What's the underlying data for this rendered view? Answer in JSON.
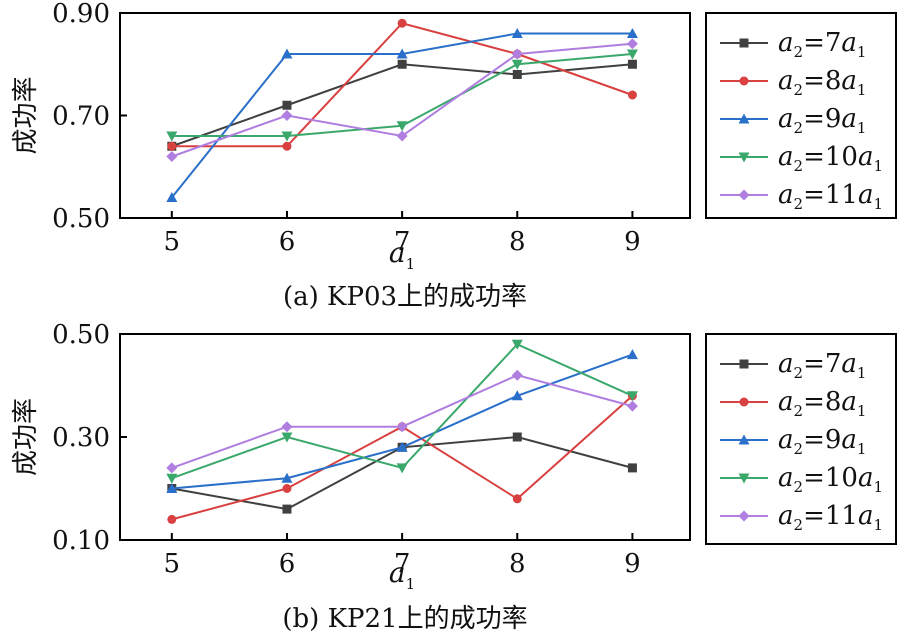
{
  "chart_data": [
    {
      "type": "line",
      "caption": "(a) KP03上的成功率",
      "xlabel": "a",
      "xlabel_sub": "1",
      "ylabel": "成功率",
      "x": [
        5,
        6,
        7,
        8,
        9
      ],
      "xlim": [
        4.55,
        9.5
      ],
      "ylim": [
        0.5,
        0.9
      ],
      "yticks": [
        "0.50",
        "0.70",
        "0.90"
      ],
      "ytick_values": [
        0.5,
        0.7,
        0.9
      ],
      "legend_position": "right",
      "series": [
        {
          "name": "a2=7a1",
          "coef": "7",
          "color": "#404040",
          "marker": "square",
          "values": [
            0.64,
            0.72,
            0.8,
            0.78,
            0.8
          ]
        },
        {
          "name": "a2=8a1",
          "coef": "8",
          "color": "#d94040",
          "marker": "circle",
          "values": [
            0.64,
            0.64,
            0.88,
            0.82,
            0.74
          ]
        },
        {
          "name": "a2=9a1",
          "coef": "9",
          "color": "#2a6fc9",
          "marker": "triangle-up",
          "values": [
            0.54,
            0.82,
            0.82,
            0.86,
            0.86
          ]
        },
        {
          "name": "a2=10a1",
          "coef": "10",
          "color": "#3aa86b",
          "marker": "triangle-down",
          "values": [
            0.66,
            0.66,
            0.68,
            0.8,
            0.82
          ]
        },
        {
          "name": "a2=11a1",
          "coef": "11",
          "color": "#b07ee0",
          "marker": "diamond",
          "values": [
            0.62,
            0.7,
            0.66,
            0.82,
            0.84
          ]
        }
      ]
    },
    {
      "type": "line",
      "caption": "(b) KP21上的成功率",
      "xlabel": "a",
      "xlabel_sub": "1",
      "ylabel": "成功率",
      "x": [
        5,
        6,
        7,
        8,
        9
      ],
      "xlim": [
        4.55,
        9.5
      ],
      "ylim": [
        0.1,
        0.5
      ],
      "yticks": [
        "0.10",
        "0.30",
        "0.50"
      ],
      "ytick_values": [
        0.1,
        0.3,
        0.5
      ],
      "legend_position": "right",
      "series": [
        {
          "name": "a2=7a1",
          "coef": "7",
          "color": "#404040",
          "marker": "square",
          "values": [
            0.2,
            0.16,
            0.28,
            0.3,
            0.24
          ]
        },
        {
          "name": "a2=8a1",
          "coef": "8",
          "color": "#d94040",
          "marker": "circle",
          "values": [
            0.14,
            0.2,
            0.32,
            0.18,
            0.38
          ]
        },
        {
          "name": "a2=9a1",
          "coef": "9",
          "color": "#2a6fc9",
          "marker": "triangle-up",
          "values": [
            0.2,
            0.22,
            0.28,
            0.38,
            0.46
          ]
        },
        {
          "name": "a2=10a1",
          "coef": "10",
          "color": "#3aa86b",
          "marker": "triangle-down",
          "values": [
            0.22,
            0.3,
            0.24,
            0.48,
            0.38
          ]
        },
        {
          "name": "a2=11a1",
          "coef": "11",
          "color": "#b07ee0",
          "marker": "diamond",
          "values": [
            0.24,
            0.32,
            0.32,
            0.42,
            0.36
          ]
        }
      ]
    }
  ]
}
